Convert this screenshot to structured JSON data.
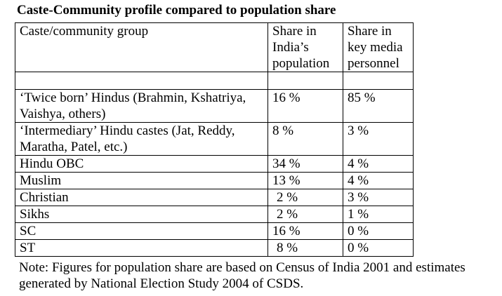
{
  "title": "Caste-Community profile compared to population share",
  "headers": [
    "Caste/community group",
    "Share in India’s population",
    "Share in key media personnel"
  ],
  "rows": [
    {
      "group": "‘Twice born’ Hindus (Brahmin, Kshatriya, Vaishya, others)",
      "population": "16 %",
      "media": "85 %"
    },
    {
      "group": "‘Intermediary’ Hindu castes (Jat, Reddy, Maratha, Patel, etc.)",
      "population": "8 %",
      "media": "3 %"
    },
    {
      "group": "Hindu OBC",
      "population": "34 %",
      "media": "4 %"
    },
    {
      "group": "Muslim",
      "population": "13 %",
      "media": "4 %"
    },
    {
      "group": "Christian",
      "population": "2 %",
      "media": "3 %"
    },
    {
      "group": "Sikhs",
      "population": "2 %",
      "media": "1 %"
    },
    {
      "group": "SC",
      "population": "16 %",
      "media": "0 %"
    },
    {
      "group": "ST",
      "population": "8 %",
      "media": "0 %"
    }
  ],
  "note": "Note: Figures for population share are based on Census of India 2001 and estimates generated by National Election Study 2004 of CSDS."
}
